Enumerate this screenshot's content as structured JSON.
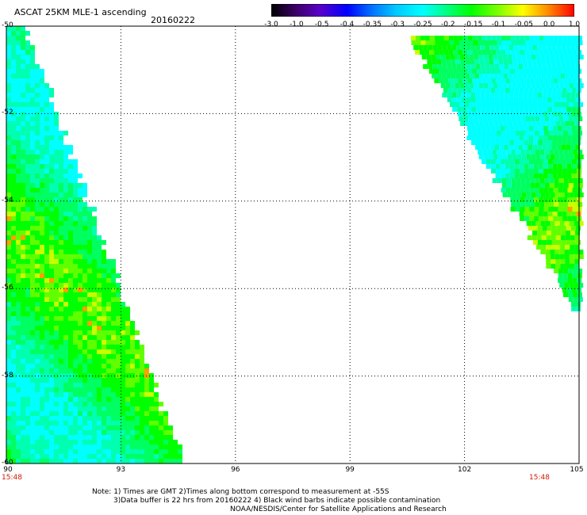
{
  "title": "ASCAT 25KM MLE-1 ascending",
  "date": "20160222",
  "colorbar": {
    "labels": [
      "-3.0",
      "-1.0",
      "-0.5",
      "-0.4",
      "-0.35",
      "-0.3",
      "-0.25",
      "-0.2",
      "-0.15",
      "-0.1",
      "-0.05",
      "0.0",
      "1.0"
    ],
    "colors": [
      "#000000",
      "#3a0066",
      "#5a00c8",
      "#0000ff",
      "#0070ff",
      "#00c8ff",
      "#00ffff",
      "#00ff80",
      "#00ff00",
      "#80ff00",
      "#ffff00",
      "#ff9000",
      "#ff0000"
    ]
  },
  "axes": {
    "lat_labels": [
      "-50",
      "-52",
      "-54",
      "-56",
      "-58",
      "-60"
    ],
    "lon_labels": [
      "90",
      "93",
      "96",
      "99",
      "102",
      "105"
    ],
    "lat_range": [
      -60,
      -50
    ],
    "lon_range": [
      90,
      105
    ],
    "grid": "dotted"
  },
  "time_left": "15:48",
  "time_right": "15:48",
  "notes": {
    "line1": "Note: 1) Times are GMT 2)Times along bottom correspond to measurement at -55S",
    "line2": "3)Data buffer is 22 hrs from 20160222 4) Black wind barbs indicate possible contamination",
    "line3": "NOAA/NESDIS/Center for Satellite Applications and Research"
  }
}
